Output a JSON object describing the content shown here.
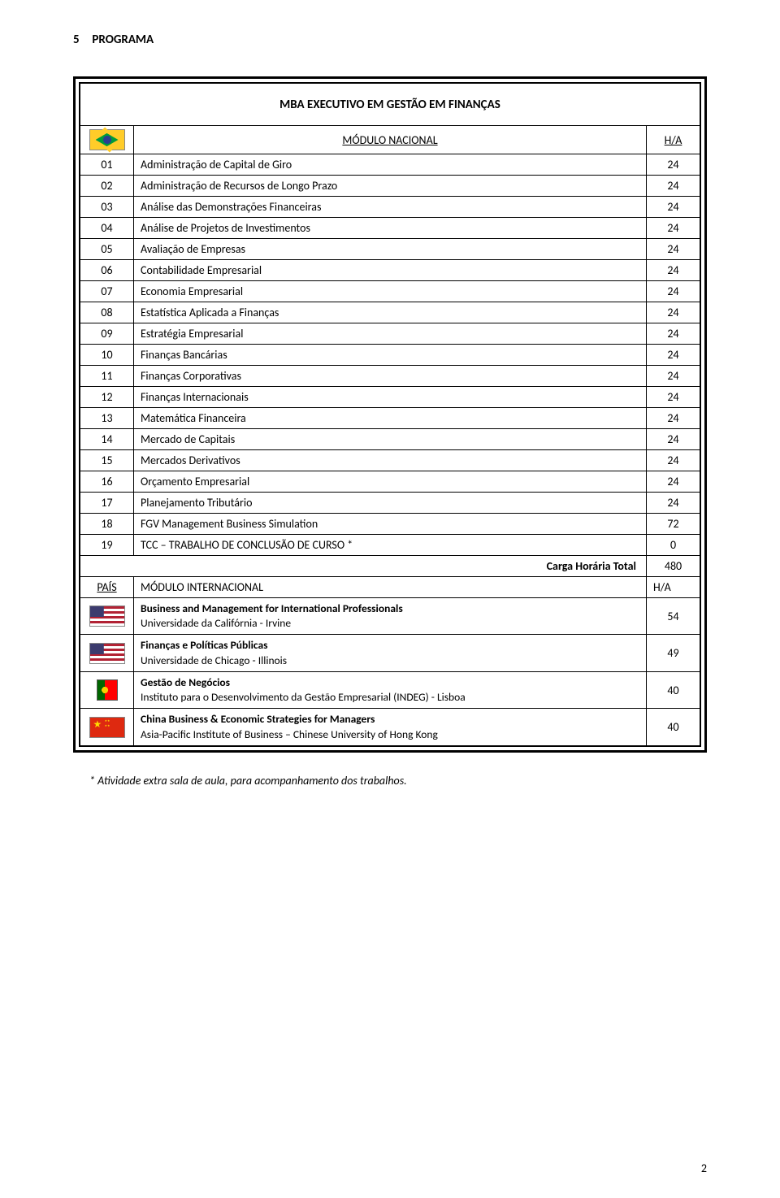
{
  "section": {
    "number": "5",
    "title": "PROGRAMA"
  },
  "table_title": "MBA EXECUTIVO EM GESTÃO EM FINANÇAS",
  "header": {
    "modulo_nacional": "MÓDULO NACIONAL",
    "ha": "H/A"
  },
  "rows": [
    {
      "n": "01",
      "desc": "Administração de Capital de Giro",
      "v": "24"
    },
    {
      "n": "02",
      "desc": "Administração de Recursos de Longo Prazo",
      "v": "24"
    },
    {
      "n": "03",
      "desc": "Análise das Demonstrações Financeiras",
      "v": "24"
    },
    {
      "n": "04",
      "desc": "Análise de Projetos de Investimentos",
      "v": "24"
    },
    {
      "n": "05",
      "desc": "Avaliação de Empresas",
      "v": "24"
    },
    {
      "n": "06",
      "desc": "Contabilidade Empresarial",
      "v": "24"
    },
    {
      "n": "07",
      "desc": "Economia Empresarial",
      "v": "24"
    },
    {
      "n": "08",
      "desc": "Estatística Aplicada a Finanças",
      "v": "24"
    },
    {
      "n": "09",
      "desc": "Estratégia Empresarial",
      "v": "24"
    },
    {
      "n": "10",
      "desc": "Finanças Bancárias",
      "v": "24"
    },
    {
      "n": "11",
      "desc": "Finanças Corporativas",
      "v": "24"
    },
    {
      "n": "12",
      "desc": "Finanças Internacionais",
      "v": "24"
    },
    {
      "n": "13",
      "desc": "Matemática Financeira",
      "v": "24"
    },
    {
      "n": "14",
      "desc": "Mercado de Capitais",
      "v": "24"
    },
    {
      "n": "15",
      "desc": "Mercados Derivativos",
      "v": "24"
    },
    {
      "n": "16",
      "desc": "Orçamento Empresarial",
      "v": "24"
    },
    {
      "n": "17",
      "desc": "Planejamento Tributário",
      "v": "24"
    },
    {
      "n": "18",
      "desc": "FGV Management Business Simulation",
      "v": "72"
    },
    {
      "n": "19",
      "desc": "TCC – TRABALHO DE CONCLUSÃO DE CURSO *",
      "v": "0"
    }
  ],
  "total": {
    "label": "Carga Horária Total",
    "value": "480"
  },
  "intl_header": {
    "pais": "PAÍS",
    "modulo": "MÓDULO INTERNACIONAL",
    "ha": "H/A"
  },
  "intl": [
    {
      "flag": "us",
      "bold": "Business and Management for International Professionals",
      "plain": "Universidade da Califórnia - Irvine",
      "v": "54"
    },
    {
      "flag": "us",
      "bold": "Finanças e Políticas Públicas",
      "plain": "Universidade de Chicago - Illinois",
      "v": "49"
    },
    {
      "flag": "pt",
      "bold": "Gestão de Negócios",
      "plain": "Instituto para o Desenvolvimento da Gestão Empresarial (INDEG) - Lisboa",
      "v": "40"
    },
    {
      "flag": "cn",
      "bold": "China Business & Economic Strategies for Managers",
      "plain": "Asia-Pacific Institute of Business – Chinese University of Hong Kong",
      "v": "40"
    }
  ],
  "footnote": "*  Atividade extra sala de aula, para acompanhamento dos trabalhos.",
  "page_number": "2",
  "colors": {
    "text": "#000000",
    "border": "#000000",
    "background": "#ffffff"
  },
  "typography": {
    "body_fontsize_pt": 11,
    "title_fontsize_pt": 11.5,
    "font_family": "Calibri"
  }
}
